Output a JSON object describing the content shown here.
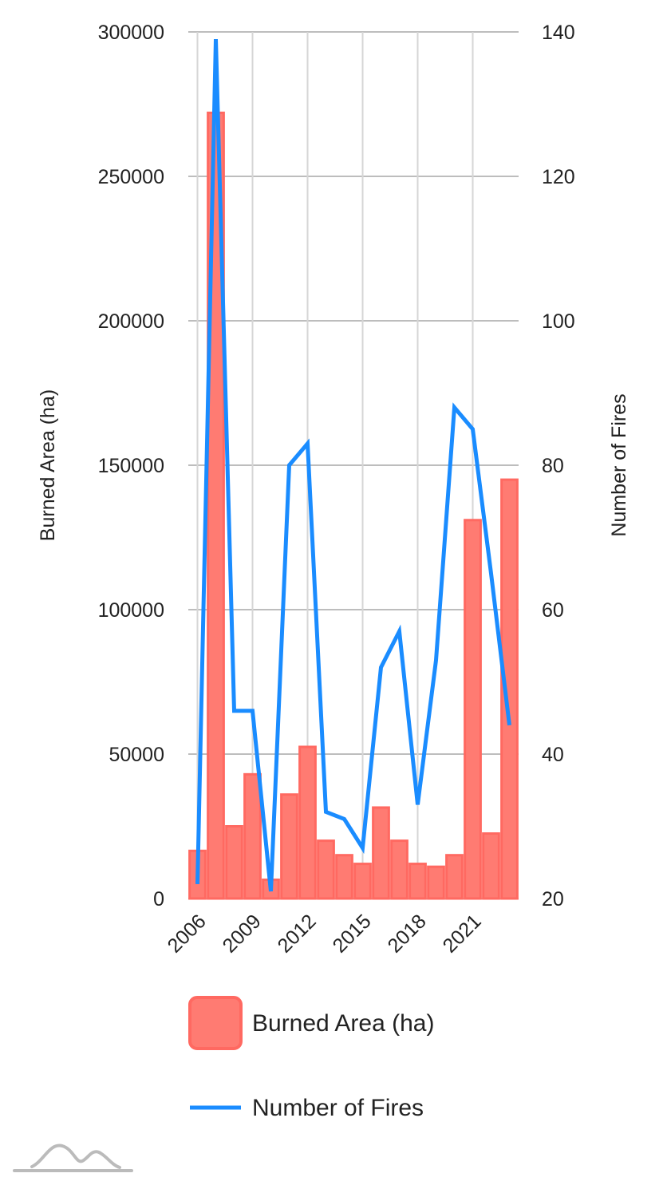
{
  "chart_data": {
    "type": "bar",
    "categories": [
      "2006",
      "2007",
      "2008",
      "2009",
      "2010",
      "2011",
      "2012",
      "2013",
      "2014",
      "2015",
      "2016",
      "2017",
      "2018",
      "2019",
      "2020",
      "2021",
      "2022",
      "2023"
    ],
    "x_tick_labels": [
      "2006",
      "2009",
      "2012",
      "2015",
      "2018",
      "2021"
    ],
    "series": [
      {
        "name": "Burned Area (ha)",
        "type": "bar",
        "axis": "left",
        "color": "#ff7b72",
        "border_color": "#ff6961",
        "values": [
          16500,
          272000,
          25000,
          43000,
          6500,
          36000,
          52500,
          20000,
          15000,
          12000,
          31500,
          20000,
          12000,
          11000,
          15000,
          131000,
          22500,
          145000
        ]
      },
      {
        "name": "Number of Fires",
        "type": "line",
        "axis": "right",
        "color": "#1a8cff",
        "values": [
          22,
          139,
          46,
          46,
          21,
          80,
          83,
          32,
          31,
          27,
          52,
          57,
          33,
          53,
          88,
          85,
          65,
          44
        ]
      }
    ],
    "y_left": {
      "label": "Burned Area (ha)",
      "min": 0,
      "max": 300000,
      "ticks": [
        "0",
        "50000",
        "100000",
        "150000",
        "200000",
        "250000",
        "300000"
      ]
    },
    "y_right": {
      "label": "Number of Fires",
      "min": 20,
      "max": 140,
      "ticks": [
        "20",
        "40",
        "60",
        "80",
        "100",
        "120",
        "140"
      ]
    },
    "grid": true,
    "legend_position": "bottom"
  },
  "logo": {
    "icon": "mountain-logo-icon",
    "color": "#bbbbbb"
  }
}
